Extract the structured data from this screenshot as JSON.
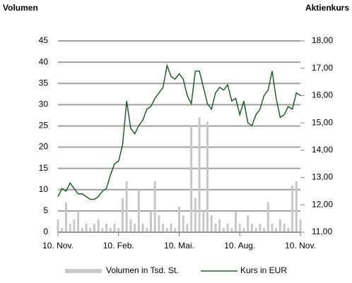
{
  "chart_data": {
    "type": "bar-line",
    "y_label": "Volumen",
    "y2_label": "Aktienkurs",
    "categories": [
      "10. Nov.",
      null,
      null,
      null,
      null,
      null,
      null,
      null,
      null,
      null,
      null,
      null,
      null,
      null,
      null,
      "10. Feb.",
      null,
      null,
      null,
      null,
      null,
      null,
      null,
      null,
      null,
      null,
      null,
      null,
      null,
      null,
      "10. Mai.",
      null,
      null,
      null,
      null,
      null,
      null,
      null,
      null,
      null,
      null,
      null,
      null,
      null,
      null,
      "10. Aug.",
      null,
      null,
      null,
      null,
      null,
      null,
      null,
      null,
      null,
      null,
      null,
      null,
      null,
      null,
      "10. Nov."
    ],
    "series": [
      {
        "name": "Volumen in Tsd. St.",
        "type": "bar",
        "axis": "y",
        "color": "#c8c8c8",
        "values": [
          3,
          1,
          7,
          2,
          3,
          5,
          1,
          2,
          1,
          2,
          3,
          1,
          2,
          1,
          2,
          1,
          8,
          12,
          3,
          2,
          10,
          2,
          1,
          5,
          12,
          4,
          2,
          1,
          2,
          1,
          6,
          4,
          2,
          25,
          8,
          27,
          5,
          26,
          4,
          2,
          3,
          1,
          2,
          1,
          5,
          2,
          1,
          4,
          2,
          1,
          2,
          1,
          7,
          2,
          1,
          3,
          2,
          1,
          11,
          12,
          3
        ]
      },
      {
        "name": "Kurs in EUR",
        "type": "line",
        "axis": "y2",
        "color": "#1f5f2a",
        "values": [
          12.3,
          12.6,
          12.5,
          12.8,
          12.6,
          12.4,
          12.4,
          12.3,
          12.2,
          12.2,
          12.3,
          12.5,
          12.6,
          13.1,
          13.5,
          13.6,
          14.2,
          15.8,
          14.8,
          14.6,
          14.9,
          15.1,
          15.5,
          15.6,
          15.9,
          16.1,
          16.3,
          17.1,
          16.7,
          16.6,
          16.8,
          16.6,
          16.0,
          15.7,
          16.9,
          16.9,
          16.3,
          15.7,
          15.5,
          16.1,
          16.3,
          16.2,
          16.4,
          15.8,
          15.9,
          15.3,
          15.8,
          15.0,
          14.9,
          15.3,
          15.5,
          16.0,
          16.2,
          16.9,
          15.9,
          15.2,
          15.3,
          15.6,
          15.5,
          16.1,
          16.0
        ]
      }
    ],
    "ylim": [
      0,
      45
    ],
    "yticks": [
      0,
      5,
      10,
      15,
      20,
      25,
      30,
      35,
      40,
      45
    ],
    "y2lim": [
      11,
      18
    ],
    "y2ticks": [
      {
        "value": 11,
        "label": "11,00"
      },
      {
        "value": 12,
        "label": "12,00"
      },
      {
        "value": 13,
        "label": "13,00"
      },
      {
        "value": 14,
        "label": "14,00"
      },
      {
        "value": 15,
        "label": "15,00"
      },
      {
        "value": 16,
        "label": "16,00"
      },
      {
        "value": 17,
        "label": "17,00"
      },
      {
        "value": 18,
        "label": "18,00"
      }
    ],
    "grid": true,
    "legend": "bottom"
  }
}
